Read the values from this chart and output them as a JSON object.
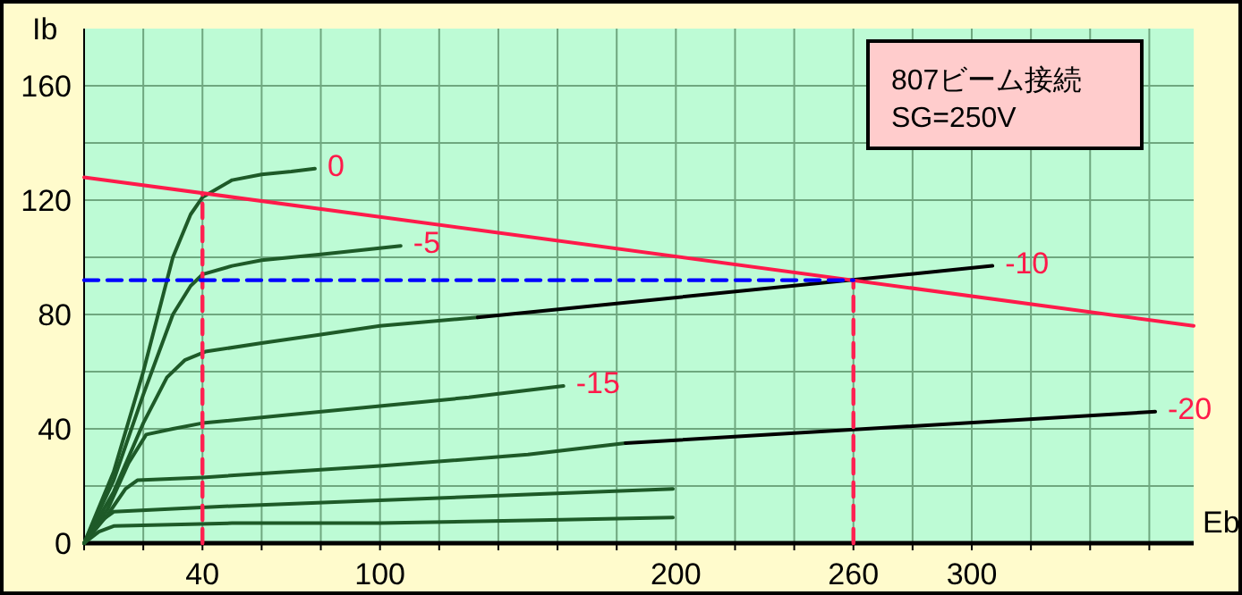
{
  "chart_data": {
    "type": "line",
    "xlabel": "Eb",
    "ylabel": "Ib",
    "xlim": [
      0,
      375
    ],
    "ylim": [
      0,
      180
    ],
    "xticks": [
      {
        "value": 0,
        "label": null
      },
      {
        "value": 20,
        "label": null
      },
      40,
      {
        "value": 60,
        "label": null
      },
      {
        "value": 80,
        "label": null
      },
      100,
      {
        "value": 120,
        "label": null
      },
      {
        "value": 140,
        "label": null
      },
      {
        "value": 160,
        "label": null
      },
      {
        "value": 180,
        "label": null
      },
      200,
      {
        "value": 220,
        "label": null
      },
      {
        "value": 240,
        "label": null
      },
      260,
      {
        "value": 280,
        "label": null
      },
      300,
      {
        "value": 320,
        "label": null
      },
      {
        "value": 340,
        "label": null
      },
      {
        "value": 360,
        "label": null
      }
    ],
    "yticks": [
      0,
      {
        "value": 20,
        "label": null
      },
      40,
      {
        "value": 60,
        "label": null
      },
      80,
      {
        "value": 100,
        "label": null
      },
      120,
      {
        "value": 140,
        "label": null
      },
      160
    ],
    "grid": true,
    "marker": "none",
    "series": [
      {
        "name": "0",
        "color": "#1e5a28",
        "x": [
          0,
          10,
          20,
          30,
          36,
          40,
          50,
          60,
          70,
          78
        ],
        "values": [
          0,
          25,
          60,
          100,
          115,
          121,
          127,
          129,
          130,
          131
        ]
      },
      {
        "name": "-5",
        "color": "#1e5a28",
        "x": [
          0,
          10,
          20,
          30,
          36,
          40,
          50,
          60,
          80,
          107
        ],
        "values": [
          0,
          22,
          52,
          80,
          90,
          94,
          97,
          99,
          101,
          104
        ]
      },
      {
        "color": "#1e5a28",
        "x": [
          0,
          10,
          20,
          28,
          34,
          41,
          60,
          80,
          100,
          133
        ],
        "values": [
          0,
          18,
          42,
          58,
          64,
          67,
          70,
          73,
          76,
          79
        ]
      },
      {
        "name": "-10",
        "color": "#000000",
        "x": [
          133,
          307
        ],
        "values": [
          79,
          97
        ]
      },
      {
        "name": "-15",
        "color": "#1e5a28",
        "x": [
          0,
          8,
          15,
          21,
          30,
          40,
          70,
          100,
          130,
          162
        ],
        "values": [
          0,
          12,
          28,
          38,
          40,
          42,
          45,
          48,
          51,
          55
        ]
      },
      {
        "color": "#1e5a28",
        "x": [
          0,
          8,
          14,
          18,
          40,
          100,
          150,
          183
        ],
        "values": [
          0,
          10,
          19,
          22,
          23,
          27,
          31,
          35
        ]
      },
      {
        "name": "-20",
        "color": "#000000",
        "x": [
          183,
          362
        ],
        "values": [
          35,
          46
        ]
      },
      {
        "color": "#1e5a28",
        "x": [
          0,
          6,
          10,
          50,
          100,
          150,
          199
        ],
        "values": [
          0,
          8,
          11,
          13,
          15,
          17,
          19
        ]
      },
      {
        "color": "#1e5a28",
        "x": [
          0,
          5,
          10,
          50,
          100,
          150,
          199
        ],
        "values": [
          0,
          4,
          6,
          7,
          7,
          8,
          9
        ]
      },
      {
        "color": "#ff1a4a",
        "x": [
          0,
          375
        ],
        "values": [
          128,
          76
        ]
      },
      {
        "color": "#ff2050",
        "line_style": "dashed",
        "x": [
          40,
          40
        ],
        "values": [
          0,
          122
        ]
      },
      {
        "color": "#ff2050",
        "line_style": "dashed",
        "x": [
          260,
          260
        ],
        "values": [
          0,
          92
        ]
      },
      {
        "color": "#0000ff",
        "line_style": "dashed",
        "x": [
          0,
          260
        ],
        "values": [
          92,
          92
        ]
      }
    ],
    "annotations": [
      "807ビーム接続",
      "SG=250V"
    ]
  }
}
